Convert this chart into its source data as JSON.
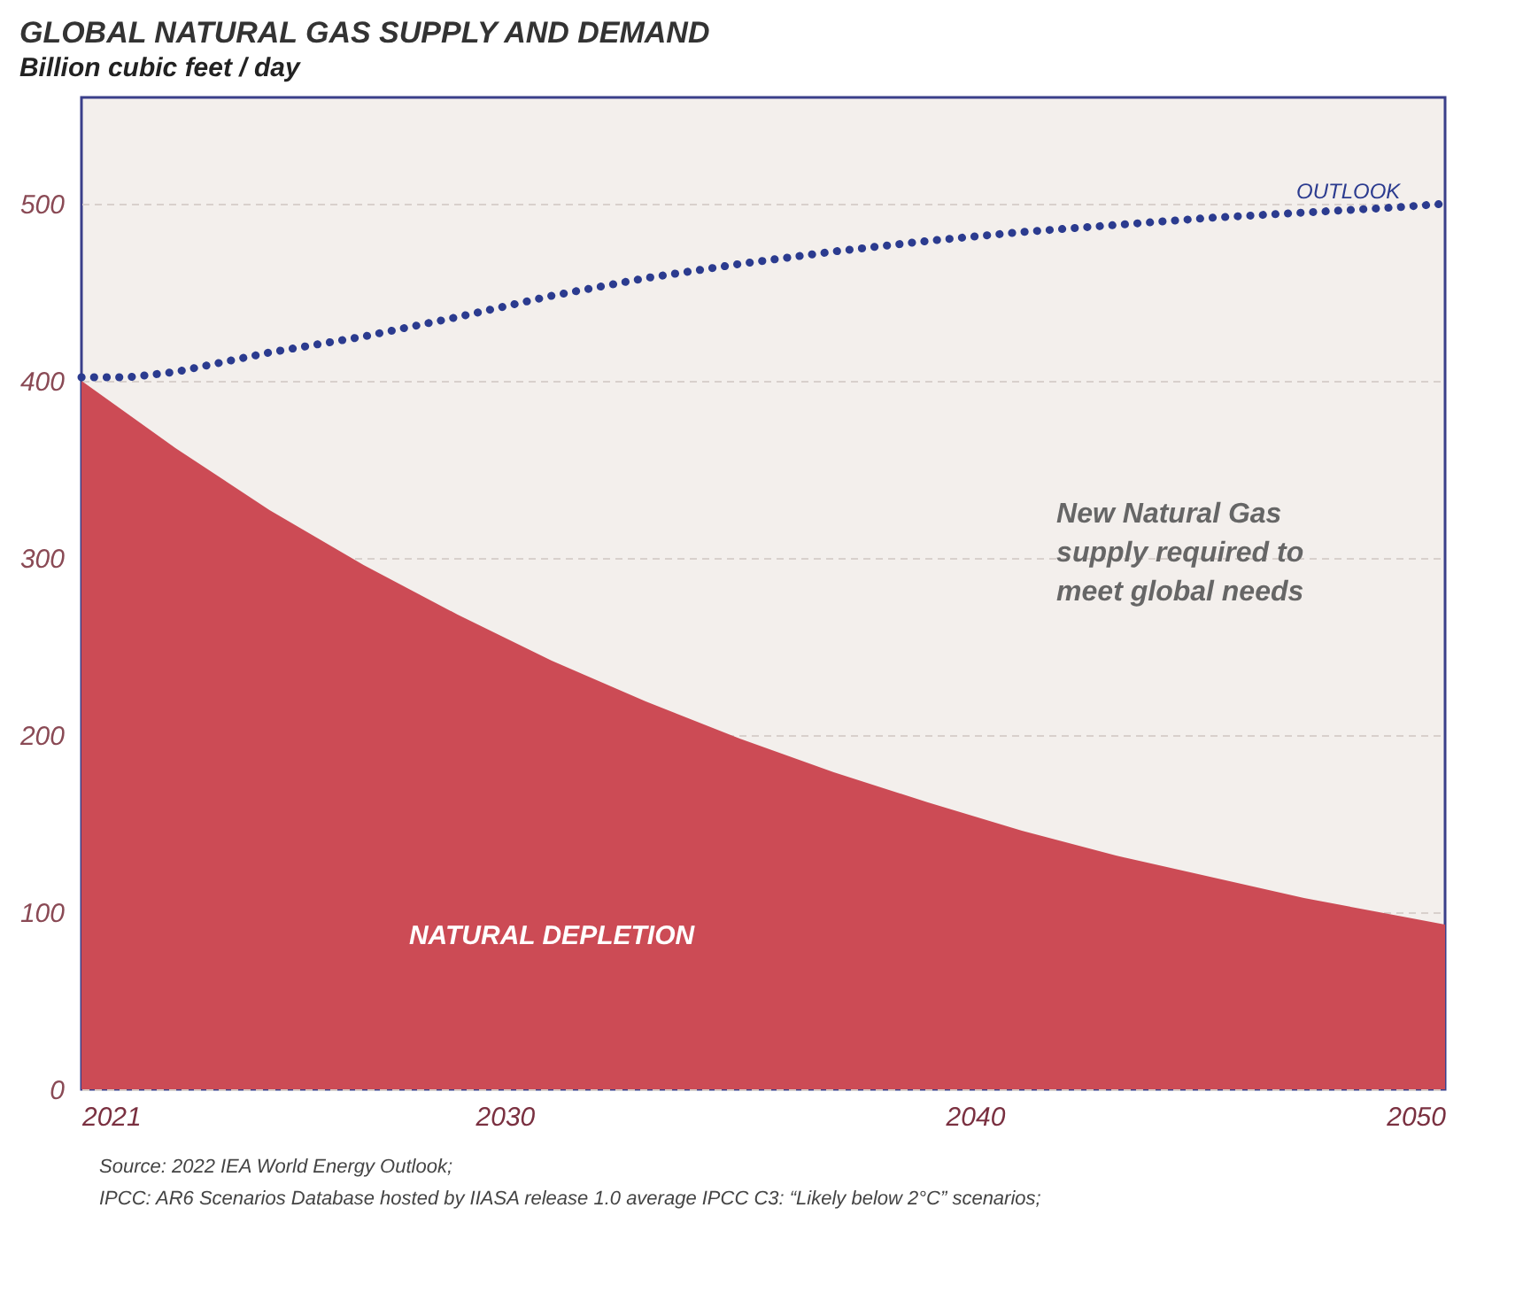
{
  "chart_data": {
    "type": "area",
    "title": "GLOBAL NATURAL GAS SUPPLY AND DEMAND",
    "subtitle": "Billion cubic feet / day",
    "xlim": [
      2021,
      2050
    ],
    "xticks": [
      2021,
      2030,
      2040,
      2050
    ],
    "ylim": [
      0,
      560
    ],
    "yticks": [
      0,
      100,
      200,
      300,
      400,
      500
    ],
    "grid": "y",
    "series": [
      {
        "name": "NATURAL DEPLETION",
        "color": "#cc4b55",
        "x": [
          2021,
          2023,
          2025,
          2027,
          2029,
          2031,
          2033,
          2035,
          2037,
          2039,
          2041,
          2043,
          2045,
          2047,
          2049,
          2050
        ],
        "values": [
          400,
          362,
          327,
          296,
          268,
          242,
          219,
          198,
          179,
          162,
          146,
          132,
          120,
          108,
          98,
          93
        ]
      },
      {
        "name": "OUTLOOK",
        "type": "line",
        "line_style": "dotted",
        "color": "#2b3b8f",
        "x": [
          2021,
          2022,
          2023,
          2025,
          2027,
          2029,
          2031,
          2033,
          2035,
          2037,
          2039,
          2041,
          2043,
          2045,
          2047,
          2049,
          2050
        ],
        "values": [
          402,
          402,
          405,
          416,
          425,
          436,
          448,
          458,
          466,
          473,
          479,
          484,
          488,
          492,
          495,
          498,
          500
        ]
      }
    ],
    "annotations": [
      "New Natural Gas supply required to meet global needs",
      "Source: 2022 IEA World Energy Outlook;",
      "IPCC: AR6 Scenarios Database hosted by IIASA release 1.0 average IPCC C3: “Likely below 2°C” scenarios;"
    ]
  }
}
